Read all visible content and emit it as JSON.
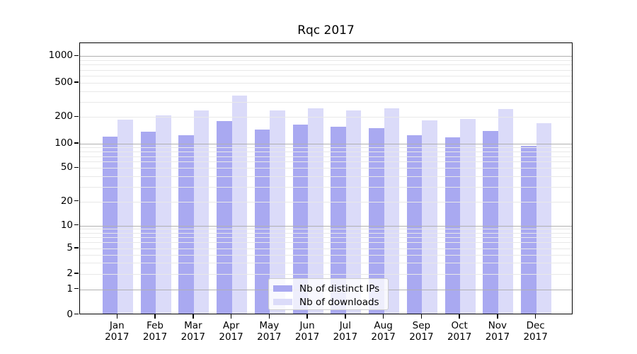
{
  "title": "Rqc 2017",
  "chart_data": {
    "type": "bar",
    "title": "Rqc 2017",
    "categories": [
      "Jan",
      "Feb",
      "Mar",
      "Apr",
      "May",
      "Jun",
      "Jul",
      "Aug",
      "Sep",
      "Oct",
      "Nov",
      "Dec"
    ],
    "x_tick_label_line2": "2017",
    "series": [
      {
        "name": "Nb of distinct IPs",
        "color": "#a9a9f1",
        "values": [
          116,
          131,
          121,
          175,
          139,
          158,
          150,
          145,
          121,
          114,
          135,
          90
        ]
      },
      {
        "name": "Nb of downloads",
        "color": "#dbdbf9",
        "values": [
          180,
          200,
          228,
          340,
          228,
          242,
          228,
          245,
          176,
          185,
          238,
          165
        ]
      }
    ],
    "yticks": [
      0,
      1,
      2,
      5,
      10,
      20,
      50,
      100,
      200,
      500,
      1000
    ],
    "yscale": "log-with-zero-floor",
    "ylim": [
      0,
      1430
    ],
    "grid": true,
    "gridline_major_color": "#b0b0b0",
    "gridline_minor_color": "#e8e8e8",
    "legend_position": "lower-center-inside"
  }
}
